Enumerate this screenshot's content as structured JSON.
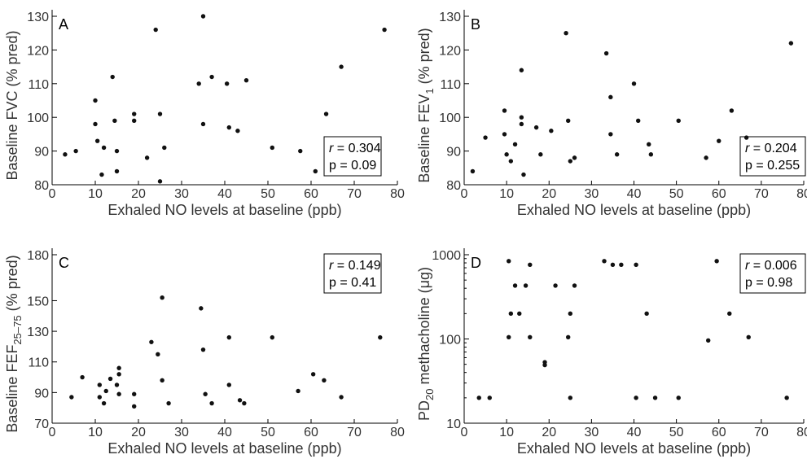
{
  "chart_data": [
    {
      "type": "scatter",
      "panel_label": "A",
      "xlabel": "Exhaled NO levels at baseline (ppb)",
      "ylabel": "Baseline FVC (% pred)",
      "xlim": [
        0,
        80
      ],
      "ylim": [
        80,
        130
      ],
      "xticks": [
        0,
        10,
        20,
        30,
        40,
        50,
        60,
        70,
        80
      ],
      "yticks": [
        80,
        90,
        100,
        110,
        120,
        130
      ],
      "log_y": false,
      "stats": {
        "r": "r = 0.304",
        "p": "p = 0.09"
      },
      "x": [
        3,
        5.5,
        10,
        10,
        10.5,
        11.5,
        12,
        14,
        14.5,
        15,
        15,
        19,
        19,
        22,
        24,
        25,
        25,
        26,
        34,
        35,
        35,
        37,
        40.5,
        41,
        43,
        45,
        51,
        57.5,
        61,
        63.5,
        67,
        77
      ],
      "y": [
        89,
        90,
        105,
        98,
        93,
        83,
        91,
        112,
        99,
        90,
        84,
        101,
        99,
        88,
        126,
        101,
        81,
        91,
        110,
        130,
        98,
        112,
        110,
        97,
        96,
        111,
        91,
        90,
        84,
        101,
        115,
        126
      ]
    },
    {
      "type": "scatter",
      "panel_label": "B",
      "xlabel": "Exhaled NO levels at baseline (ppb)",
      "ylabel": "Baseline FEV",
      "ylabel_sub": "1",
      "ylabel_suffix": " (% pred)",
      "xlim": [
        0,
        80
      ],
      "ylim": [
        80,
        130
      ],
      "xticks": [
        0,
        10,
        20,
        30,
        40,
        50,
        60,
        70,
        80
      ],
      "yticks": [
        80,
        90,
        100,
        110,
        120,
        130
      ],
      "log_y": false,
      "stats": {
        "r": "r = 0.204",
        "p": "p = 0.255"
      },
      "x": [
        2,
        5,
        9.5,
        9.5,
        10,
        11,
        12,
        13.5,
        13.5,
        13.5,
        14,
        17,
        18,
        20.5,
        24,
        24.5,
        25,
        26,
        33.5,
        34.5,
        34.5,
        36,
        40,
        41,
        43.5,
        44,
        50.5,
        57,
        60,
        63,
        66.5,
        77
      ],
      "y": [
        84,
        94,
        95,
        102,
        89,
        87,
        92,
        114,
        100,
        98,
        83,
        97,
        89,
        96,
        125,
        99,
        87,
        88,
        119,
        106,
        95,
        89,
        110,
        99,
        92,
        89,
        99,
        88,
        93,
        102,
        94,
        122
      ]
    },
    {
      "type": "scatter",
      "panel_label": "C",
      "xlabel": "Exhaled NO levels at baseline (ppb)",
      "ylabel": "Baseline FEF",
      "ylabel_sub": "25–75",
      "ylabel_suffix": " (% pred)",
      "xlim": [
        0,
        80
      ],
      "ylim": [
        70,
        180
      ],
      "xticks": [
        0,
        10,
        20,
        30,
        40,
        50,
        60,
        70,
        80
      ],
      "yticks": [
        70,
        90,
        110,
        130,
        150,
        180
      ],
      "log_y": false,
      "stats": {
        "r": "r = 0.149",
        "p": "p = 0.41"
      },
      "x": [
        4.5,
        7,
        11,
        11,
        12,
        12.5,
        13.5,
        15,
        15.5,
        15.5,
        15.5,
        19,
        19,
        23,
        24.5,
        25.5,
        25.5,
        27,
        34.5,
        35,
        35.5,
        37,
        41,
        41,
        43.5,
        44.5,
        51,
        57,
        60.5,
        63,
        67,
        76
      ],
      "y": [
        87,
        100,
        95,
        87,
        83,
        91,
        99,
        95,
        102,
        106,
        89,
        89,
        81,
        123,
        115,
        152,
        98,
        83,
        145,
        118,
        89,
        83,
        126,
        95,
        85,
        83,
        126,
        91,
        102,
        98,
        87,
        126
      ]
    },
    {
      "type": "scatter",
      "panel_label": "D",
      "xlabel": "Exhaled NO levels at baseline (ppb)",
      "ylabel": "PD",
      "ylabel_sub": "20",
      "ylabel_suffix": " methacholine (μg)",
      "xlim": [
        0,
        80
      ],
      "ylim": [
        10,
        1000
      ],
      "xticks": [
        0,
        10,
        20,
        30,
        40,
        50,
        60,
        70,
        80
      ],
      "yticks": [
        10,
        100,
        1000
      ],
      "log_y": true,
      "stats": {
        "r": "r = 0.006",
        "p": "p = 0.98"
      },
      "x": [
        3.5,
        6,
        10.5,
        10.5,
        11,
        12,
        13,
        14.5,
        15.5,
        15.5,
        19,
        19,
        21.5,
        24.5,
        25,
        25,
        26,
        33,
        35,
        37,
        40.5,
        40.5,
        43,
        45,
        50.5,
        57.5,
        59.5,
        62.5,
        67,
        76
      ],
      "y": [
        20,
        20,
        840,
        105,
        200,
        430,
        200,
        430,
        760,
        105,
        53,
        49,
        430,
        105,
        200,
        20,
        430,
        840,
        760,
        760,
        760,
        20,
        200,
        20,
        20,
        96,
        840,
        200,
        105,
        20
      ]
    }
  ]
}
